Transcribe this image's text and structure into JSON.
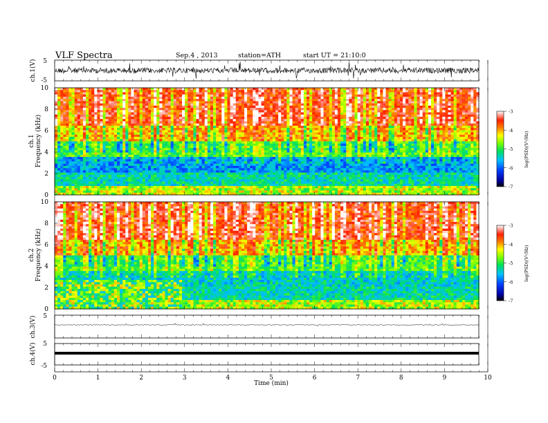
{
  "header": {
    "title": "VLF Spectra",
    "date": "Sep.4 , 2013",
    "station": "station=ATH",
    "start_ut": "start UT = 21:10:0"
  },
  "colors": {
    "spectrum_low": "#0000c0",
    "spectrum_mid": "#00e060",
    "spectrum_high": "#ff2000",
    "waveform": "#000000"
  },
  "chart_data": [
    {
      "type": "line",
      "panel": "ch1-waveform",
      "ylabel": "ch.1(V)",
      "xlim": [
        0,
        10
      ],
      "ylim": [
        -5,
        5
      ],
      "yticks": [
        "5",
        "-5"
      ],
      "data_extent_min": [
        0,
        9.8
      ]
    },
    {
      "type": "heatmap",
      "panel": "ch1-spectrogram",
      "ylabel_channel": "ch.1",
      "ylabel": "Frequency (kHz)",
      "ylim": [
        0,
        10
      ],
      "yticks": [
        "10",
        "8",
        "6",
        "4",
        "2",
        "0"
      ],
      "colorbar": {
        "label": "log(PSD)(V²/Hz)",
        "range": [
          -7,
          -3
        ],
        "ticks": [
          "-3",
          "-4",
          "-5",
          "-6",
          "-7"
        ]
      },
      "data_extent_min": [
        0,
        9.8
      ]
    },
    {
      "type": "heatmap",
      "panel": "ch2-spectrogram",
      "ylabel_channel": "ch.2",
      "ylabel": "Frequency (kHz)",
      "ylim": [
        0,
        10
      ],
      "yticks": [
        "10",
        "8",
        "6",
        "4",
        "2",
        "0"
      ],
      "colorbar": {
        "label": "log(PSD)(V²/Hz)",
        "range": [
          -7,
          -3
        ],
        "ticks": [
          "-3",
          "-4",
          "-5",
          "-6",
          "-7"
        ]
      },
      "data_extent_min": [
        0,
        9.8
      ]
    },
    {
      "type": "line",
      "panel": "ch3-waveform",
      "ylabel": "ch.3(V)",
      "ylim": [
        -5,
        5
      ],
      "yticks": [
        "5",
        "-5"
      ]
    },
    {
      "type": "line",
      "panel": "ch4-waveform",
      "ylabel": "ch.4(V)",
      "ylim": [
        -5,
        5
      ],
      "yticks": [
        "5",
        "-5"
      ]
    }
  ],
  "xaxis": {
    "label": "Time (min)",
    "range": [
      0,
      10
    ],
    "ticks": [
      "0",
      "1",
      "2",
      "3",
      "4",
      "5",
      "6",
      "7",
      "8",
      "9",
      "10"
    ]
  }
}
